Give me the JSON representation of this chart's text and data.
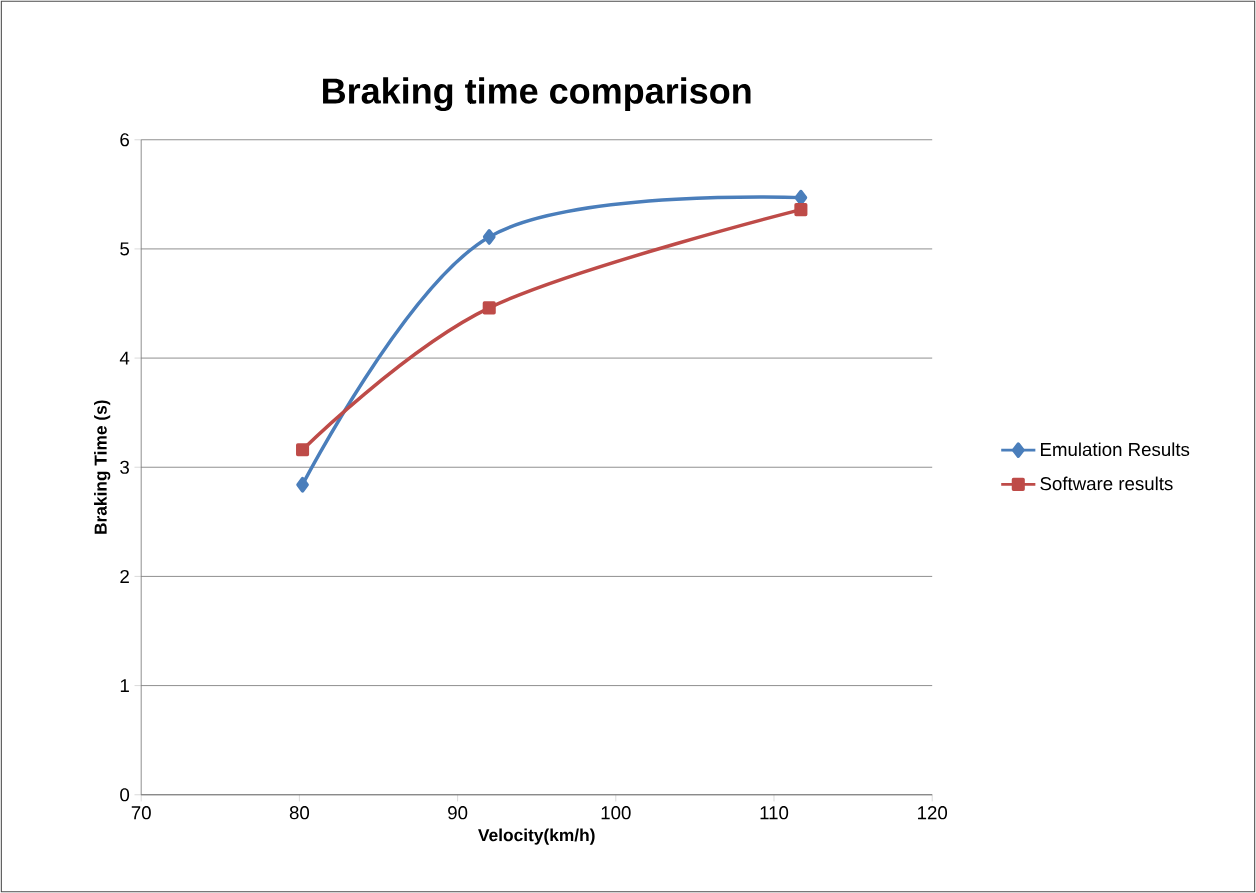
{
  "chart_data": {
    "type": "line",
    "title": "Braking time comparison",
    "xlabel": "Velocity(km/h)",
    "ylabel": "Braking Time (s)",
    "x": [
      80.2,
      92.0,
      111.7
    ],
    "series": [
      {
        "name": "Emulation Results",
        "color": "#4a7ebb",
        "marker": "diamond",
        "values": [
          2.84,
          5.11,
          5.47
        ]
      },
      {
        "name": "Software results",
        "color": "#be4b48",
        "marker": "square",
        "values": [
          3.16,
          4.46,
          5.36
        ]
      }
    ],
    "xlim": [
      70,
      120
    ],
    "xticks": [
      70,
      80,
      90,
      100,
      110,
      120
    ],
    "ylim": [
      0,
      6
    ],
    "yticks": [
      0,
      1,
      2,
      3,
      4,
      5,
      6
    ],
    "grid": "y",
    "legend": "right",
    "line_style": "solid"
  }
}
